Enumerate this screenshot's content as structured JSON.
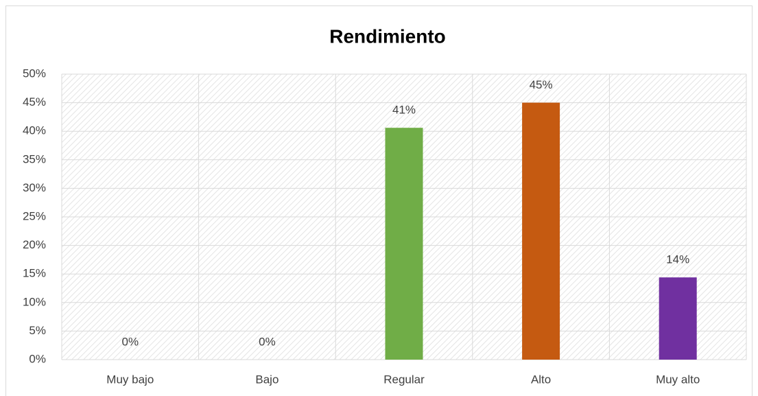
{
  "chart_data": {
    "type": "bar",
    "title": "Rendimiento",
    "categories": [
      "Muy bajo",
      "Bajo",
      "Regular",
      "Alto",
      "Muy alto"
    ],
    "values": [
      0,
      0,
      40.6,
      45,
      14.4
    ],
    "value_labels": [
      "0%",
      "0%",
      "41%",
      "45%",
      "14%"
    ],
    "colors": [
      null,
      null,
      "#70ad47",
      "#c55a11",
      "#7030a0"
    ],
    "ylim": [
      0,
      50
    ],
    "yticks": [
      {
        "value": 0,
        "label": "0%"
      },
      {
        "value": 5,
        "label": "5%"
      },
      {
        "value": 10,
        "label": "10%"
      },
      {
        "value": 15,
        "label": "15%"
      },
      {
        "value": 20,
        "label": "20%"
      },
      {
        "value": 25,
        "label": "25%"
      },
      {
        "value": 30,
        "label": "30%"
      },
      {
        "value": 35,
        "label": "35%"
      },
      {
        "value": 40,
        "label": "40%"
      },
      {
        "value": 45,
        "label": "45%"
      },
      {
        "value": 50,
        "label": "50%"
      }
    ],
    "grid": true
  }
}
